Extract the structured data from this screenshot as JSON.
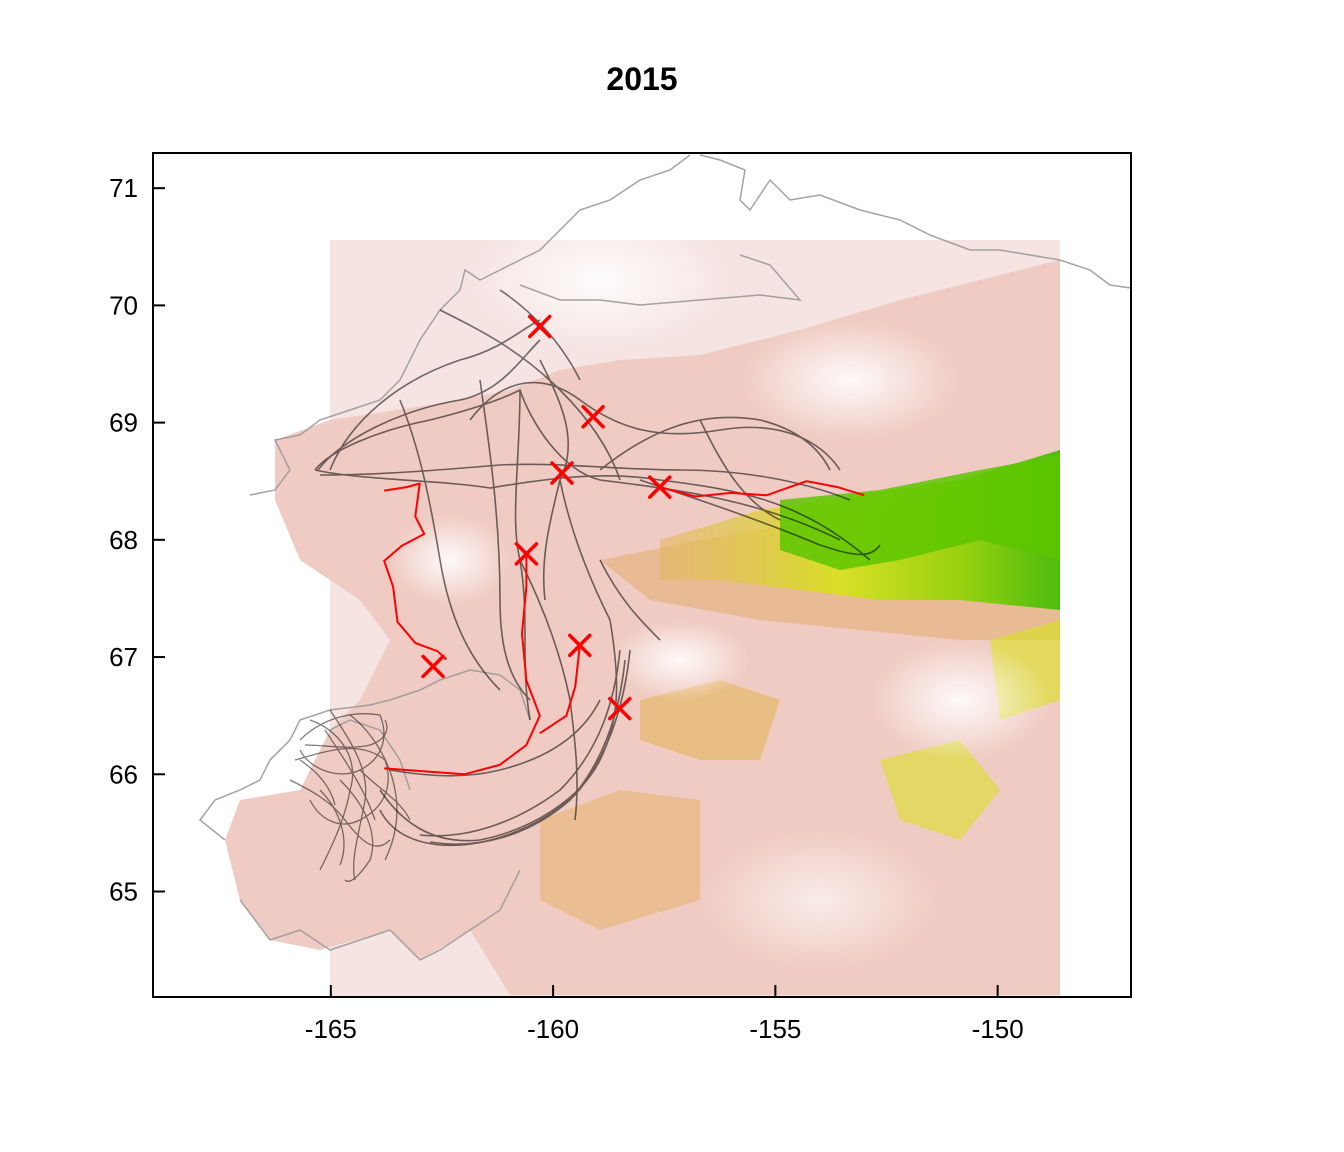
{
  "chart_data": {
    "type": "map",
    "title": "2015",
    "xlabel": "",
    "ylabel": "",
    "xlim": [
      -169,
      -147
    ],
    "ylim": [
      64.1,
      71.3
    ],
    "x_ticks": [
      -165,
      -160,
      -155,
      -150
    ],
    "y_ticks": [
      65,
      66,
      67,
      68,
      69,
      70,
      71
    ],
    "x_tick_labels": [
      "-165",
      "-160",
      "-155",
      "-150"
    ],
    "y_tick_labels": [
      "65",
      "66",
      "67",
      "68",
      "69",
      "70",
      "71"
    ],
    "grid": false,
    "raster_colormap": [
      "#ffffff",
      "#f2dcdc",
      "#e9a98f",
      "#e2b55a",
      "#d8e31a",
      "#8fd400",
      "#2fb800"
    ],
    "colors": {
      "tracks": "#000000",
      "highlight_track": "#ff0000",
      "markers": "#ff0000",
      "coastline": "#9a9a9a"
    },
    "marker_points": [
      {
        "x": -160.3,
        "y": 69.82
      },
      {
        "x": -159.1,
        "y": 69.05
      },
      {
        "x": -159.8,
        "y": 68.57
      },
      {
        "x": -157.6,
        "y": 68.45
      },
      {
        "x": -160.6,
        "y": 67.88
      },
      {
        "x": -159.4,
        "y": 67.1
      },
      {
        "x": -162.7,
        "y": 66.92
      },
      {
        "x": -158.5,
        "y": 66.56
      }
    ],
    "highlight_track": [
      {
        "x": -163.8,
        "y": 68.42
      },
      {
        "x": -163.3,
        "y": 68.45
      },
      {
        "x": -163.0,
        "y": 68.48
      },
      {
        "x": -163.1,
        "y": 68.2
      },
      {
        "x": -162.9,
        "y": 68.05
      },
      {
        "x": -163.4,
        "y": 67.95
      },
      {
        "x": -163.8,
        "y": 67.82
      },
      {
        "x": -163.6,
        "y": 67.6
      },
      {
        "x": -163.5,
        "y": 67.3
      },
      {
        "x": -163.1,
        "y": 67.12
      },
      {
        "x": -162.6,
        "y": 67.05
      },
      {
        "x": -162.4,
        "y": 66.98
      }
    ],
    "highlight_track_2": [
      {
        "x": -163.8,
        "y": 66.05
      },
      {
        "x": -162.0,
        "y": 66.0
      },
      {
        "x": -161.2,
        "y": 66.08
      },
      {
        "x": -160.6,
        "y": 66.25
      },
      {
        "x": -160.3,
        "y": 66.5
      },
      {
        "x": -160.6,
        "y": 66.8
      },
      {
        "x": -160.7,
        "y": 67.2
      },
      {
        "x": -160.6,
        "y": 67.6
      },
      {
        "x": -160.6,
        "y": 67.88
      }
    ],
    "highlight_track_3": [
      {
        "x": -160.3,
        "y": 66.35
      },
      {
        "x": -159.7,
        "y": 66.5
      },
      {
        "x": -159.5,
        "y": 66.75
      },
      {
        "x": -159.4,
        "y": 67.1
      }
    ],
    "highlight_track_4": [
      {
        "x": -157.6,
        "y": 68.45
      },
      {
        "x": -156.8,
        "y": 68.37
      },
      {
        "x": -156.0,
        "y": 68.4
      },
      {
        "x": -155.2,
        "y": 68.38
      },
      {
        "x": -154.3,
        "y": 68.5
      },
      {
        "x": -153.6,
        "y": 68.45
      },
      {
        "x": -153.0,
        "y": 68.38
      }
    ]
  }
}
